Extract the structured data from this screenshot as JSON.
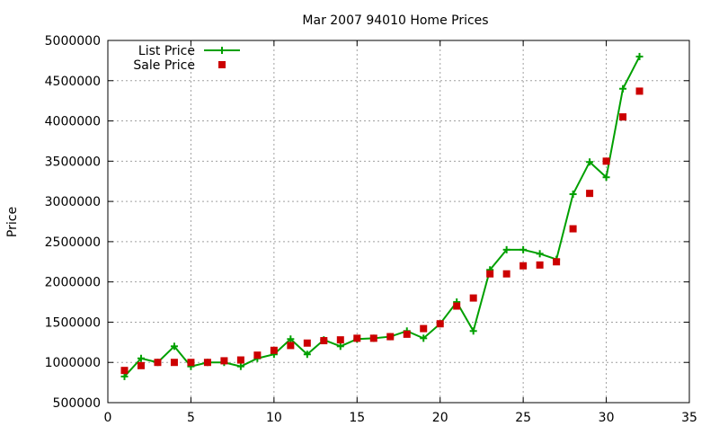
{
  "chart_data": {
    "type": "line",
    "title": "Mar 2007 94010 Home Prices",
    "xlabel": "",
    "ylabel": "Price",
    "xlim": [
      0,
      35
    ],
    "ylim": [
      500000,
      5000000
    ],
    "x_ticks": [
      0,
      5,
      10,
      15,
      20,
      25,
      30,
      35
    ],
    "y_ticks": [
      500000,
      1000000,
      1500000,
      2000000,
      2500000,
      3000000,
      3500000,
      4000000,
      4500000,
      5000000
    ],
    "grid": true,
    "legend_position": "top-left",
    "series": [
      {
        "name": "List Price",
        "style": "line-plus",
        "color": "#00a000",
        "points": [
          [
            1,
            825000
          ],
          [
            2,
            1050000
          ],
          [
            3,
            1000000
          ],
          [
            4,
            1200000
          ],
          [
            5,
            950000
          ],
          [
            6,
            1000000
          ],
          [
            7,
            1000000
          ],
          [
            8,
            950000
          ],
          [
            9,
            1050000
          ],
          [
            10,
            1100000
          ],
          [
            11,
            1290000
          ],
          [
            12,
            1100000
          ],
          [
            13,
            1280000
          ],
          [
            14,
            1200000
          ],
          [
            15,
            1290000
          ],
          [
            16,
            1300000
          ],
          [
            17,
            1320000
          ],
          [
            18,
            1390000
          ],
          [
            19,
            1300000
          ],
          [
            20,
            1480000
          ],
          [
            21,
            1750000
          ],
          [
            22,
            1390000
          ],
          [
            23,
            2150000
          ],
          [
            24,
            2400000
          ],
          [
            25,
            2400000
          ],
          [
            26,
            2350000
          ],
          [
            27,
            2280000
          ],
          [
            28,
            3090000
          ],
          [
            29,
            3490000
          ],
          [
            30,
            3300000
          ],
          [
            31,
            4400000
          ],
          [
            32,
            4800000
          ]
        ]
      },
      {
        "name": "Sale Price",
        "style": "points-square",
        "color": "#cc0000",
        "points": [
          [
            1,
            900000
          ],
          [
            2,
            960000
          ],
          [
            3,
            1000000
          ],
          [
            4,
            1000000
          ],
          [
            5,
            1000000
          ],
          [
            6,
            1000000
          ],
          [
            7,
            1020000
          ],
          [
            8,
            1030000
          ],
          [
            9,
            1090000
          ],
          [
            10,
            1150000
          ],
          [
            11,
            1210000
          ],
          [
            12,
            1240000
          ],
          [
            13,
            1270000
          ],
          [
            14,
            1280000
          ],
          [
            15,
            1300000
          ],
          [
            16,
            1300000
          ],
          [
            17,
            1320000
          ],
          [
            18,
            1350000
          ],
          [
            19,
            1420000
          ],
          [
            20,
            1480000
          ],
          [
            21,
            1700000
          ],
          [
            22,
            1800000
          ],
          [
            23,
            2100000
          ],
          [
            24,
            2100000
          ],
          [
            25,
            2200000
          ],
          [
            26,
            2210000
          ],
          [
            27,
            2250000
          ],
          [
            28,
            2660000
          ],
          [
            29,
            3100000
          ],
          [
            30,
            3500000
          ],
          [
            31,
            4050000
          ],
          [
            32,
            4370000
          ]
        ]
      }
    ]
  }
}
